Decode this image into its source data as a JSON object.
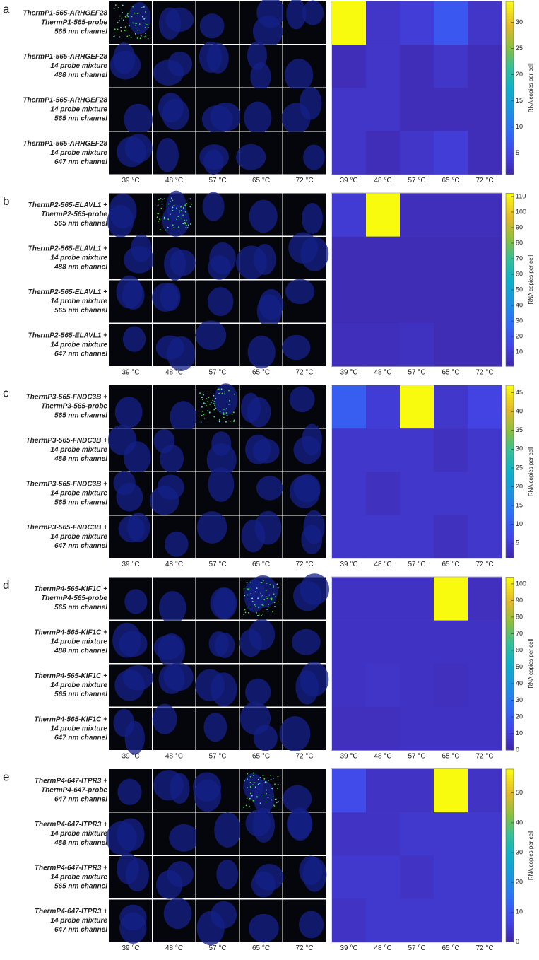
{
  "chart_data": [
    {
      "type": "heatmap",
      "panel": "a",
      "row_labels": [
        [
          "ThermP1-565-ARHGEF28",
          "ThermP1-565-probe",
          "565 nm channel"
        ],
        [
          "ThermP1-565-ARHGEF28",
          "14 probe mixture",
          "488 nm channel"
        ],
        [
          "ThermP1-565-ARHGEF28",
          "14 probe mixture",
          "565 nm channel"
        ],
        [
          "ThermP1-565-ARHGEF28",
          "14 probe mixture",
          "647 nm channel"
        ]
      ],
      "categories": [
        "39 °C",
        "48 °C",
        "57 °C",
        "65 °C",
        "72 °C"
      ],
      "values": [
        [
          34,
          3,
          4,
          7,
          3
        ],
        [
          2,
          3,
          2,
          3,
          2
        ],
        [
          3,
          3,
          2,
          2,
          2
        ],
        [
          3,
          2,
          3,
          4,
          2
        ]
      ],
      "zlim": [
        1,
        34
      ],
      "zticks": [
        5,
        10,
        15,
        20,
        25,
        30
      ],
      "colorbar_label": "RNA copies per cell",
      "colormap": "parula"
    },
    {
      "type": "heatmap",
      "panel": "b",
      "row_labels": [
        [
          "ThermP2-565-ELAVL1 +",
          "ThermP2-565-probe",
          "565 nm channel"
        ],
        [
          "ThermP2-565-ELAVL1 +",
          "14 probe mixture",
          "488 nm channel"
        ],
        [
          "ThermP2-565-ELAVL1 +",
          "14 probe mixture",
          "565 nm channel"
        ],
        [
          "ThermP2-565-ELAVL1 +",
          "14 probe mixture",
          "647 nm channel"
        ]
      ],
      "categories": [
        "39 °C",
        "48 °C",
        "57 °C",
        "65 °C",
        "72 °C"
      ],
      "values": [
        [
          10,
          112,
          5,
          5,
          5
        ],
        [
          4,
          4,
          4,
          4,
          4
        ],
        [
          4,
          4,
          4,
          4,
          4
        ],
        [
          5,
          5,
          6,
          4,
          4
        ]
      ],
      "zlim": [
        1,
        112
      ],
      "zticks": [
        10,
        20,
        30,
        40,
        50,
        60,
        70,
        80,
        90,
        100,
        110
      ],
      "colorbar_label": "RNA copies per cell",
      "colormap": "parula"
    },
    {
      "type": "heatmap",
      "panel": "c",
      "row_labels": [
        [
          "ThermP3-565-FNDC3B +",
          "ThermP3-565-probe",
          "565 nm channel"
        ],
        [
          "ThermP3-565-FNDC3B +",
          "14 probe mixture",
          "488 nm channel"
        ],
        [
          "ThermP3-565-FNDC3B +",
          "14 probe mixture",
          "565 nm channel"
        ],
        [
          "ThermP3-565-FNDC3B +",
          "14 probe mixture",
          "647 nm channel"
        ]
      ],
      "categories": [
        "39 °C",
        "48 °C",
        "57 °C",
        "65 °C",
        "72 °C"
      ],
      "values": [
        [
          10,
          5,
          47,
          4,
          6
        ],
        [
          4,
          4,
          4,
          3,
          4
        ],
        [
          4,
          3,
          4,
          4,
          4
        ],
        [
          4,
          4,
          4,
          3,
          4
        ]
      ],
      "zlim": [
        1,
        47
      ],
      "zticks": [
        5,
        10,
        15,
        20,
        25,
        30,
        35,
        40,
        45
      ],
      "colorbar_label": "RNA copies per cell",
      "colormap": "parula"
    },
    {
      "type": "heatmap",
      "panel": "d",
      "row_labels": [
        [
          "ThermP4-565-KIF1C +",
          "ThermP4-565-probe",
          "565 nm channel"
        ],
        [
          "ThermP4-565-KIF1C +",
          "14 probe mixture",
          "488 nm channel"
        ],
        [
          "ThermP4-565-KIF1C +",
          "14 probe mixture",
          "565 nm channel"
        ],
        [
          "ThermP4-565-KIF1C +",
          "14 probe mixture",
          "647 nm channel"
        ]
      ],
      "categories": [
        "39 °C",
        "48 °C",
        "57 °C",
        "65 °C",
        "72 °C"
      ],
      "values": [
        [
          5,
          5,
          5,
          104,
          4
        ],
        [
          5,
          5,
          5,
          5,
          5
        ],
        [
          5,
          6,
          5,
          4,
          5
        ],
        [
          4,
          4,
          5,
          5,
          5
        ]
      ],
      "zlim": [
        0,
        104
      ],
      "zticks": [
        0,
        10,
        20,
        30,
        40,
        50,
        60,
        70,
        80,
        90,
        100
      ],
      "colorbar_label": "RNA copies per cell",
      "colormap": "parula"
    },
    {
      "type": "heatmap",
      "panel": "e",
      "row_labels": [
        [
          "ThermP4-647-ITPR3 +",
          "ThermP4-647-probe",
          "647 nm channel"
        ],
        [
          "ThermP4-647-ITPR3 +",
          "14 probe mixture",
          "488 nm channel"
        ],
        [
          "ThermP4-647-ITPR3 +",
          "14 probe mixture",
          "565 nm channel"
        ],
        [
          "ThermP4-647-ITPR3 +",
          "14 probe mixture",
          "647 nm channel"
        ]
      ],
      "categories": [
        "39 °C",
        "48 °C",
        "57 °C",
        "65 °C",
        "72 °C"
      ],
      "values": [
        [
          8,
          3,
          3,
          58,
          3
        ],
        [
          3,
          3,
          4,
          4,
          4
        ],
        [
          4,
          4,
          3,
          4,
          4
        ],
        [
          3,
          4,
          4,
          4,
          4
        ]
      ],
      "zlim": [
        0,
        58
      ],
      "zticks": [
        0,
        10,
        20,
        30,
        40,
        50
      ],
      "colorbar_label": "RNA copies per cell",
      "colormap": "parula"
    }
  ]
}
